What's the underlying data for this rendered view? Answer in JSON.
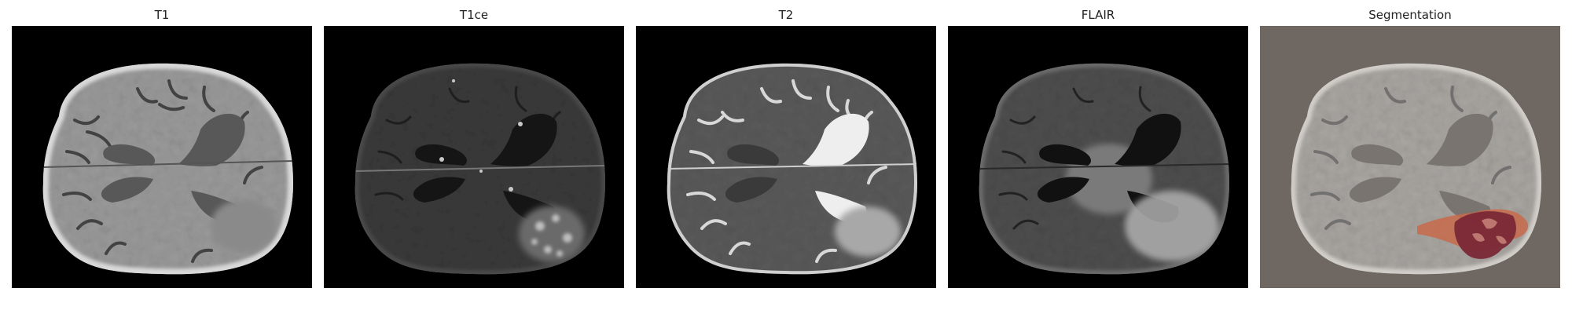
{
  "figure": {
    "panels": [
      {
        "id": "t1",
        "title": "T1"
      },
      {
        "id": "t1ce",
        "title": "T1ce"
      },
      {
        "id": "t2",
        "title": "T2"
      },
      {
        "id": "flair",
        "title": "FLAIR"
      },
      {
        "id": "seg",
        "title": "Segmentation"
      }
    ]
  }
}
